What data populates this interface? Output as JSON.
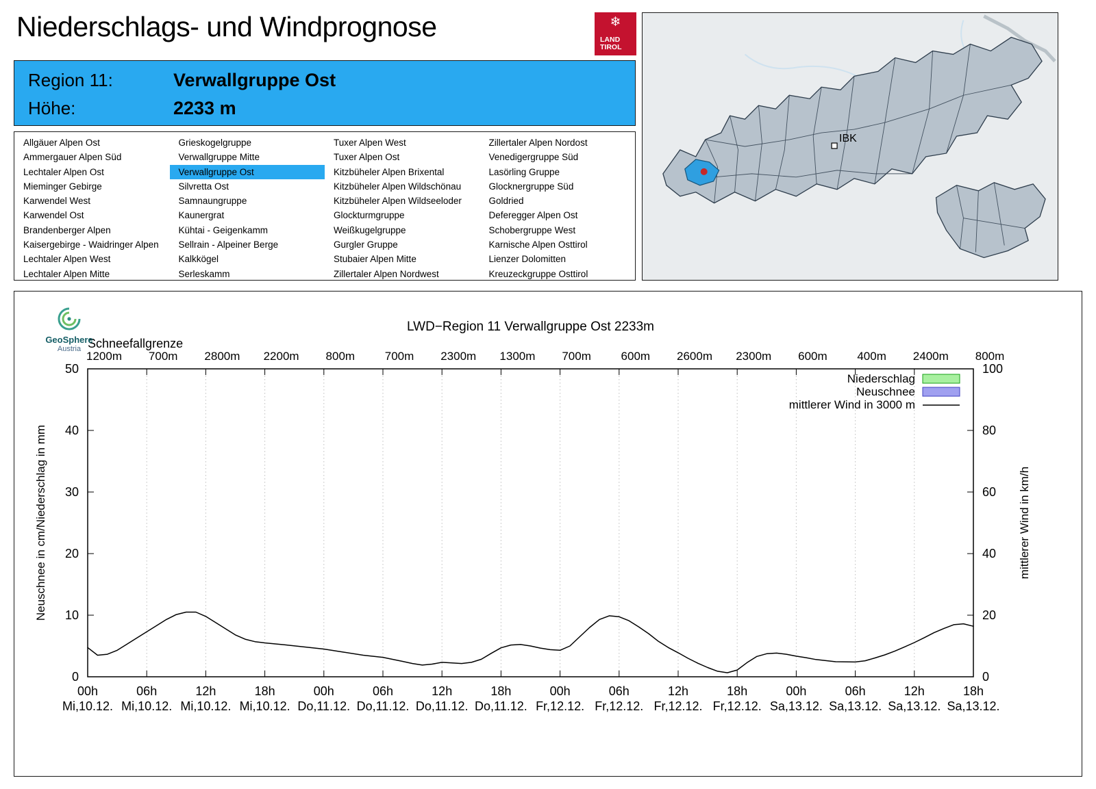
{
  "header": {
    "title": "Niederschlags- und Windprognose",
    "logo": {
      "line1": "LAND",
      "line2": "TIROL",
      "bg_color": "#c4122f",
      "snowflake_icon": "❄"
    }
  },
  "region_info": {
    "region_label": "Region 11:",
    "region_name": "Verwallgruppe Ost",
    "altitude_label": "Höhe:",
    "altitude_value": "2233 m",
    "accent_color": "#29a9f0"
  },
  "region_list": {
    "selected": "Verwallgruppe Ost",
    "columns": [
      [
        "Allgäuer Alpen Ost",
        "Ammergauer Alpen Süd",
        "Lechtaler Alpen Ost",
        "Mieminger Gebirge",
        "Karwendel West",
        "Karwendel Ost",
        "Brandenberger Alpen",
        "Kaisergebirge - Waidringer Alpen",
        "Lechtaler Alpen West",
        "Lechtaler Alpen Mitte"
      ],
      [
        "Grieskogelgruppe",
        "Verwallgruppe Mitte",
        "Verwallgruppe Ost",
        "Silvretta Ost",
        "Samnaungruppe",
        "Kaunergrat",
        "Kühtai - Geigenkamm",
        "Sellrain - Alpeiner Berge",
        "Kalkkögel",
        "Serleskamm"
      ],
      [
        "Tuxer Alpen West",
        "Tuxer Alpen Ost",
        "Kitzbüheler Alpen Brixental",
        "Kitzbüheler Alpen Wildschönau",
        "Kitzbüheler Alpen Wildseeloder",
        "Glockturmgruppe",
        "Weißkugelgruppe",
        "Gurgler Gruppe",
        "Stubaier Alpen Mitte",
        "Zillertaler Alpen Nordwest"
      ],
      [
        "Zillertaler Alpen Nordost",
        "Venedigergruppe Süd",
        "Lasörling Gruppe",
        "Glocknergruppe Süd",
        "Goldried",
        "Deferegger Alpen Ost",
        "Schobergruppe West",
        "Karnische Alpen Osttirol",
        "Lienzer Dolomitten",
        "Kreuzeckgruppe Osttirol"
      ]
    ]
  },
  "map": {
    "city_label": "IBK",
    "selected_region_color": "#2f9fe0",
    "marker_color": "#c62828"
  },
  "chart_header": {
    "logo_line1": "GeoSphere",
    "logo_line2": "Austria"
  },
  "chart_data": {
    "type": "line",
    "title": "LWD−Region 11 Verwallgruppe Ost 2233m",
    "snowline_label": "Schneefallgrenze",
    "snowline_values": [
      "1200m",
      "700m",
      "2800m",
      "2200m",
      "800m",
      "700m",
      "2300m",
      "1300m",
      "700m",
      "600m",
      "2600m",
      "2300m",
      "600m",
      "400m",
      "2400m",
      "800m"
    ],
    "ylabel_left": "Neuschnee in cm/Niederschlag in mm",
    "ylabel_right": "mittlerer Wind in km/h",
    "ylim_left": [
      0,
      50
    ],
    "ylim_right": [
      0,
      100
    ],
    "yticks_left": [
      0,
      10,
      20,
      30,
      40,
      50
    ],
    "yticks_right": [
      0,
      20,
      40,
      60,
      80,
      100
    ],
    "grid": "vertical-dotted",
    "legend_position": "top-right-inside",
    "x_ticks": [
      {
        "hour": "00h",
        "date": "Mi,10.12."
      },
      {
        "hour": "06h",
        "date": "Mi,10.12."
      },
      {
        "hour": "12h",
        "date": "Mi,10.12."
      },
      {
        "hour": "18h",
        "date": "Mi,10.12."
      },
      {
        "hour": "00h",
        "date": "Do,11.12."
      },
      {
        "hour": "06h",
        "date": "Do,11.12."
      },
      {
        "hour": "12h",
        "date": "Do,11.12."
      },
      {
        "hour": "18h",
        "date": "Do,11.12."
      },
      {
        "hour": "00h",
        "date": "Fr,12.12."
      },
      {
        "hour": "06h",
        "date": "Fr,12.12."
      },
      {
        "hour": "12h",
        "date": "Fr,12.12."
      },
      {
        "hour": "18h",
        "date": "Fr,12.12."
      },
      {
        "hour": "00h",
        "date": "Sa,13.12."
      },
      {
        "hour": "06h",
        "date": "Sa,13.12."
      },
      {
        "hour": "12h",
        "date": "Sa,13.12."
      },
      {
        "hour": "18h",
        "date": "Sa,13.12."
      }
    ],
    "legend": [
      {
        "label": "Niederschlag",
        "swatch": "box",
        "fill": "#a8f0a0",
        "stroke": "#18a018"
      },
      {
        "label": "Neuschnee",
        "swatch": "box",
        "fill": "#a0a0f0",
        "stroke": "#4040c0"
      },
      {
        "label": "mittlerer Wind in 3000 m",
        "swatch": "line",
        "stroke": "#000000"
      }
    ],
    "series": [
      {
        "name": "Niederschlag",
        "type": "bar",
        "unit": "mm",
        "values": []
      },
      {
        "name": "Neuschnee",
        "type": "bar",
        "unit": "cm",
        "values": []
      },
      {
        "name": "mittlerer Wind in 3000 m",
        "type": "line",
        "unit": "km/h",
        "x_hours_range": [
          0,
          90
        ],
        "points": [
          [
            0,
            9.5
          ],
          [
            1,
            7.0
          ],
          [
            2,
            7.3
          ],
          [
            3,
            8.6
          ],
          [
            4,
            10.6
          ],
          [
            5,
            12.6
          ],
          [
            6,
            14.6
          ],
          [
            7,
            16.6
          ],
          [
            8,
            18.6
          ],
          [
            9,
            20.2
          ],
          [
            10,
            21.0
          ],
          [
            11,
            21.0
          ],
          [
            12,
            19.6
          ],
          [
            13,
            17.6
          ],
          [
            14,
            15.6
          ],
          [
            15,
            13.6
          ],
          [
            16,
            12.2
          ],
          [
            17,
            11.4
          ],
          [
            18,
            11.0
          ],
          [
            20,
            10.4
          ],
          [
            22,
            9.7
          ],
          [
            24,
            9.0
          ],
          [
            26,
            8.0
          ],
          [
            28,
            7.0
          ],
          [
            30,
            6.3
          ],
          [
            32,
            5.0
          ],
          [
            33,
            4.3
          ],
          [
            34,
            3.8
          ],
          [
            35,
            4.1
          ],
          [
            36,
            4.7
          ],
          [
            37,
            4.5
          ],
          [
            38,
            4.3
          ],
          [
            39,
            4.7
          ],
          [
            40,
            5.7
          ],
          [
            41,
            7.6
          ],
          [
            42,
            9.4
          ],
          [
            43,
            10.3
          ],
          [
            44,
            10.5
          ],
          [
            45,
            10.0
          ],
          [
            46,
            9.3
          ],
          [
            47,
            8.8
          ],
          [
            48,
            8.6
          ],
          [
            49,
            10.0
          ],
          [
            50,
            13.0
          ],
          [
            51,
            16.0
          ],
          [
            52,
            18.6
          ],
          [
            53,
            19.8
          ],
          [
            54,
            19.5
          ],
          [
            55,
            18.2
          ],
          [
            56,
            16.2
          ],
          [
            57,
            14.0
          ],
          [
            58,
            11.5
          ],
          [
            59,
            9.5
          ],
          [
            60,
            7.8
          ],
          [
            61,
            6.0
          ],
          [
            62,
            4.4
          ],
          [
            63,
            3.0
          ],
          [
            64,
            1.8
          ],
          [
            65,
            1.3
          ],
          [
            66,
            2.2
          ],
          [
            67,
            4.6
          ],
          [
            68,
            6.6
          ],
          [
            69,
            7.5
          ],
          [
            70,
            7.7
          ],
          [
            71,
            7.3
          ],
          [
            72,
            6.7
          ],
          [
            73,
            6.2
          ],
          [
            74,
            5.6
          ],
          [
            76,
            4.9
          ],
          [
            78,
            4.8
          ],
          [
            79,
            5.2
          ],
          [
            80,
            6.1
          ],
          [
            81,
            7.1
          ],
          [
            82,
            8.3
          ],
          [
            83,
            9.7
          ],
          [
            84,
            11.1
          ],
          [
            85,
            12.7
          ],
          [
            86,
            14.3
          ],
          [
            87,
            15.7
          ],
          [
            88,
            16.9
          ],
          [
            89,
            17.2
          ],
          [
            90,
            16.4
          ]
        ]
      }
    ]
  }
}
